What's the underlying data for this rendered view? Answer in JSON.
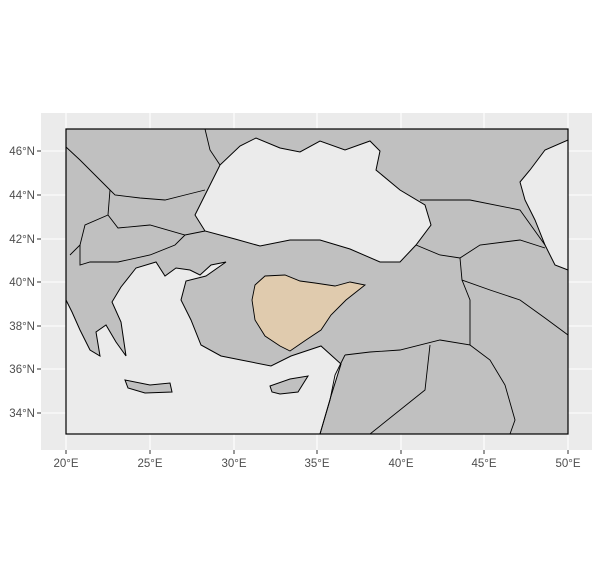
{
  "map": {
    "x_axis_labels": [
      "20°E",
      "25°E",
      "30°E",
      "35°E",
      "40°E",
      "45°E",
      "50°E"
    ],
    "y_axis_labels": [
      "46°N",
      "44°N",
      "42°N",
      "40°N",
      "38°N",
      "36°N",
      "34°N"
    ],
    "extent": {
      "lon": [
        20,
        50
      ],
      "lat": [
        33,
        47
      ]
    },
    "colors": {
      "panel": "#EBEBEB",
      "land": "#C0C0C0",
      "highlight": "#E0CBAE",
      "border": "#000000",
      "grid": "#FFFFFF"
    },
    "highlighted_region": "central Anatolia"
  }
}
